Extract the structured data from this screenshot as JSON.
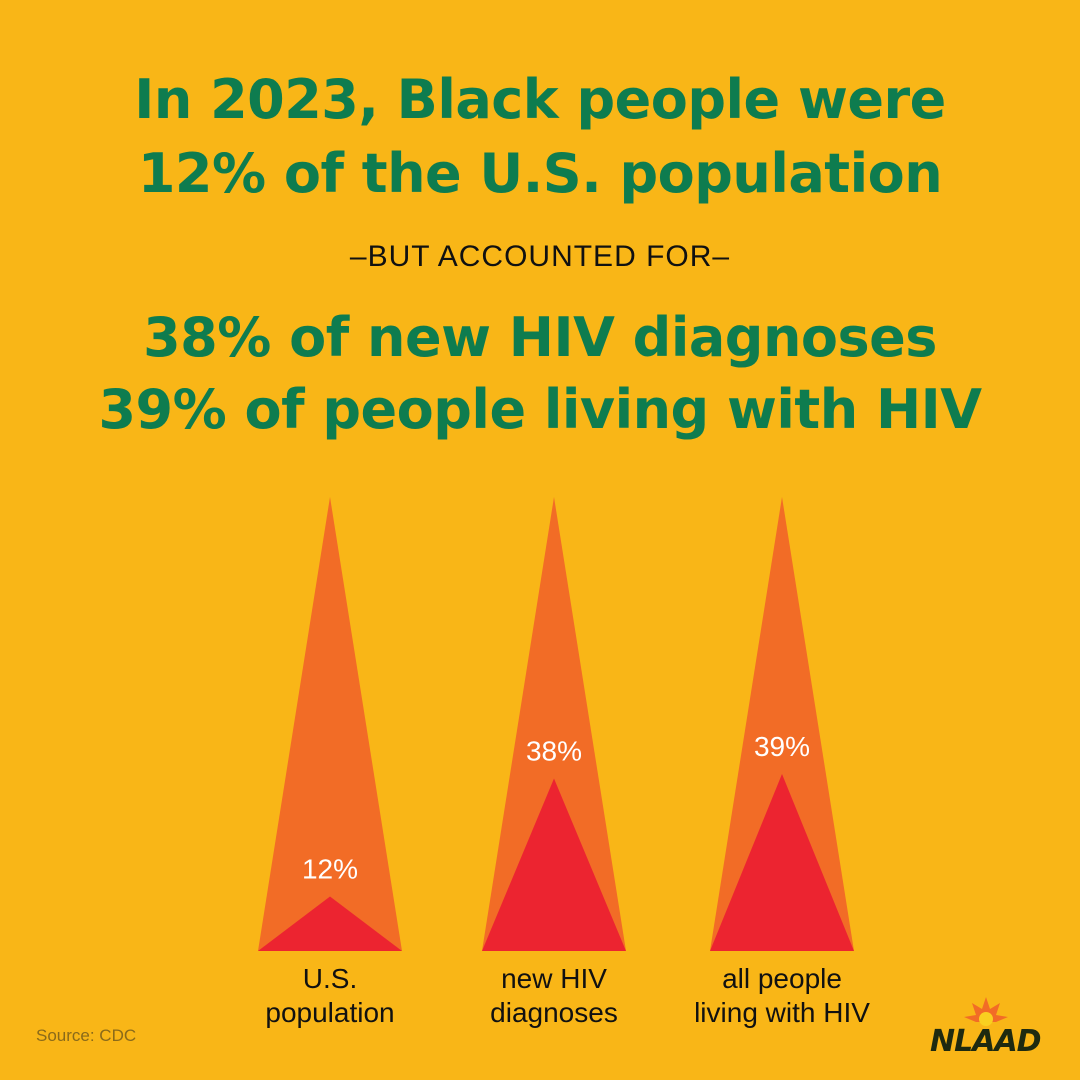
{
  "headline": {
    "line1": "In 2023, Black people were",
    "line2": "12% of the U.S. population",
    "connector": "–BUT ACCOUNTED FOR–",
    "line3": "38% of new HIV diagnoses",
    "line4": "39% of people living with HIV"
  },
  "source": "Source: CDC",
  "logo": "NLAAD",
  "colors": {
    "background": "#F9B617",
    "outer_triangle": "#F26C26",
    "inner_triangle": "#EC2430",
    "headline": "#0E7C4F"
  },
  "chart_data": {
    "type": "bar",
    "shape": "triangle",
    "categories": [
      "U.S.\npopulation",
      "new HIV\ndiagnoses",
      "all people\nliving with HIV"
    ],
    "category_lines": [
      [
        "U.S.",
        "population"
      ],
      [
        "new HIV",
        "diagnoses"
      ],
      [
        "all people",
        "living with HIV"
      ]
    ],
    "values": [
      12,
      38,
      39
    ],
    "value_labels": [
      "12%",
      "38%",
      "39%"
    ],
    "ylim": [
      0,
      100
    ],
    "unit": "%"
  }
}
